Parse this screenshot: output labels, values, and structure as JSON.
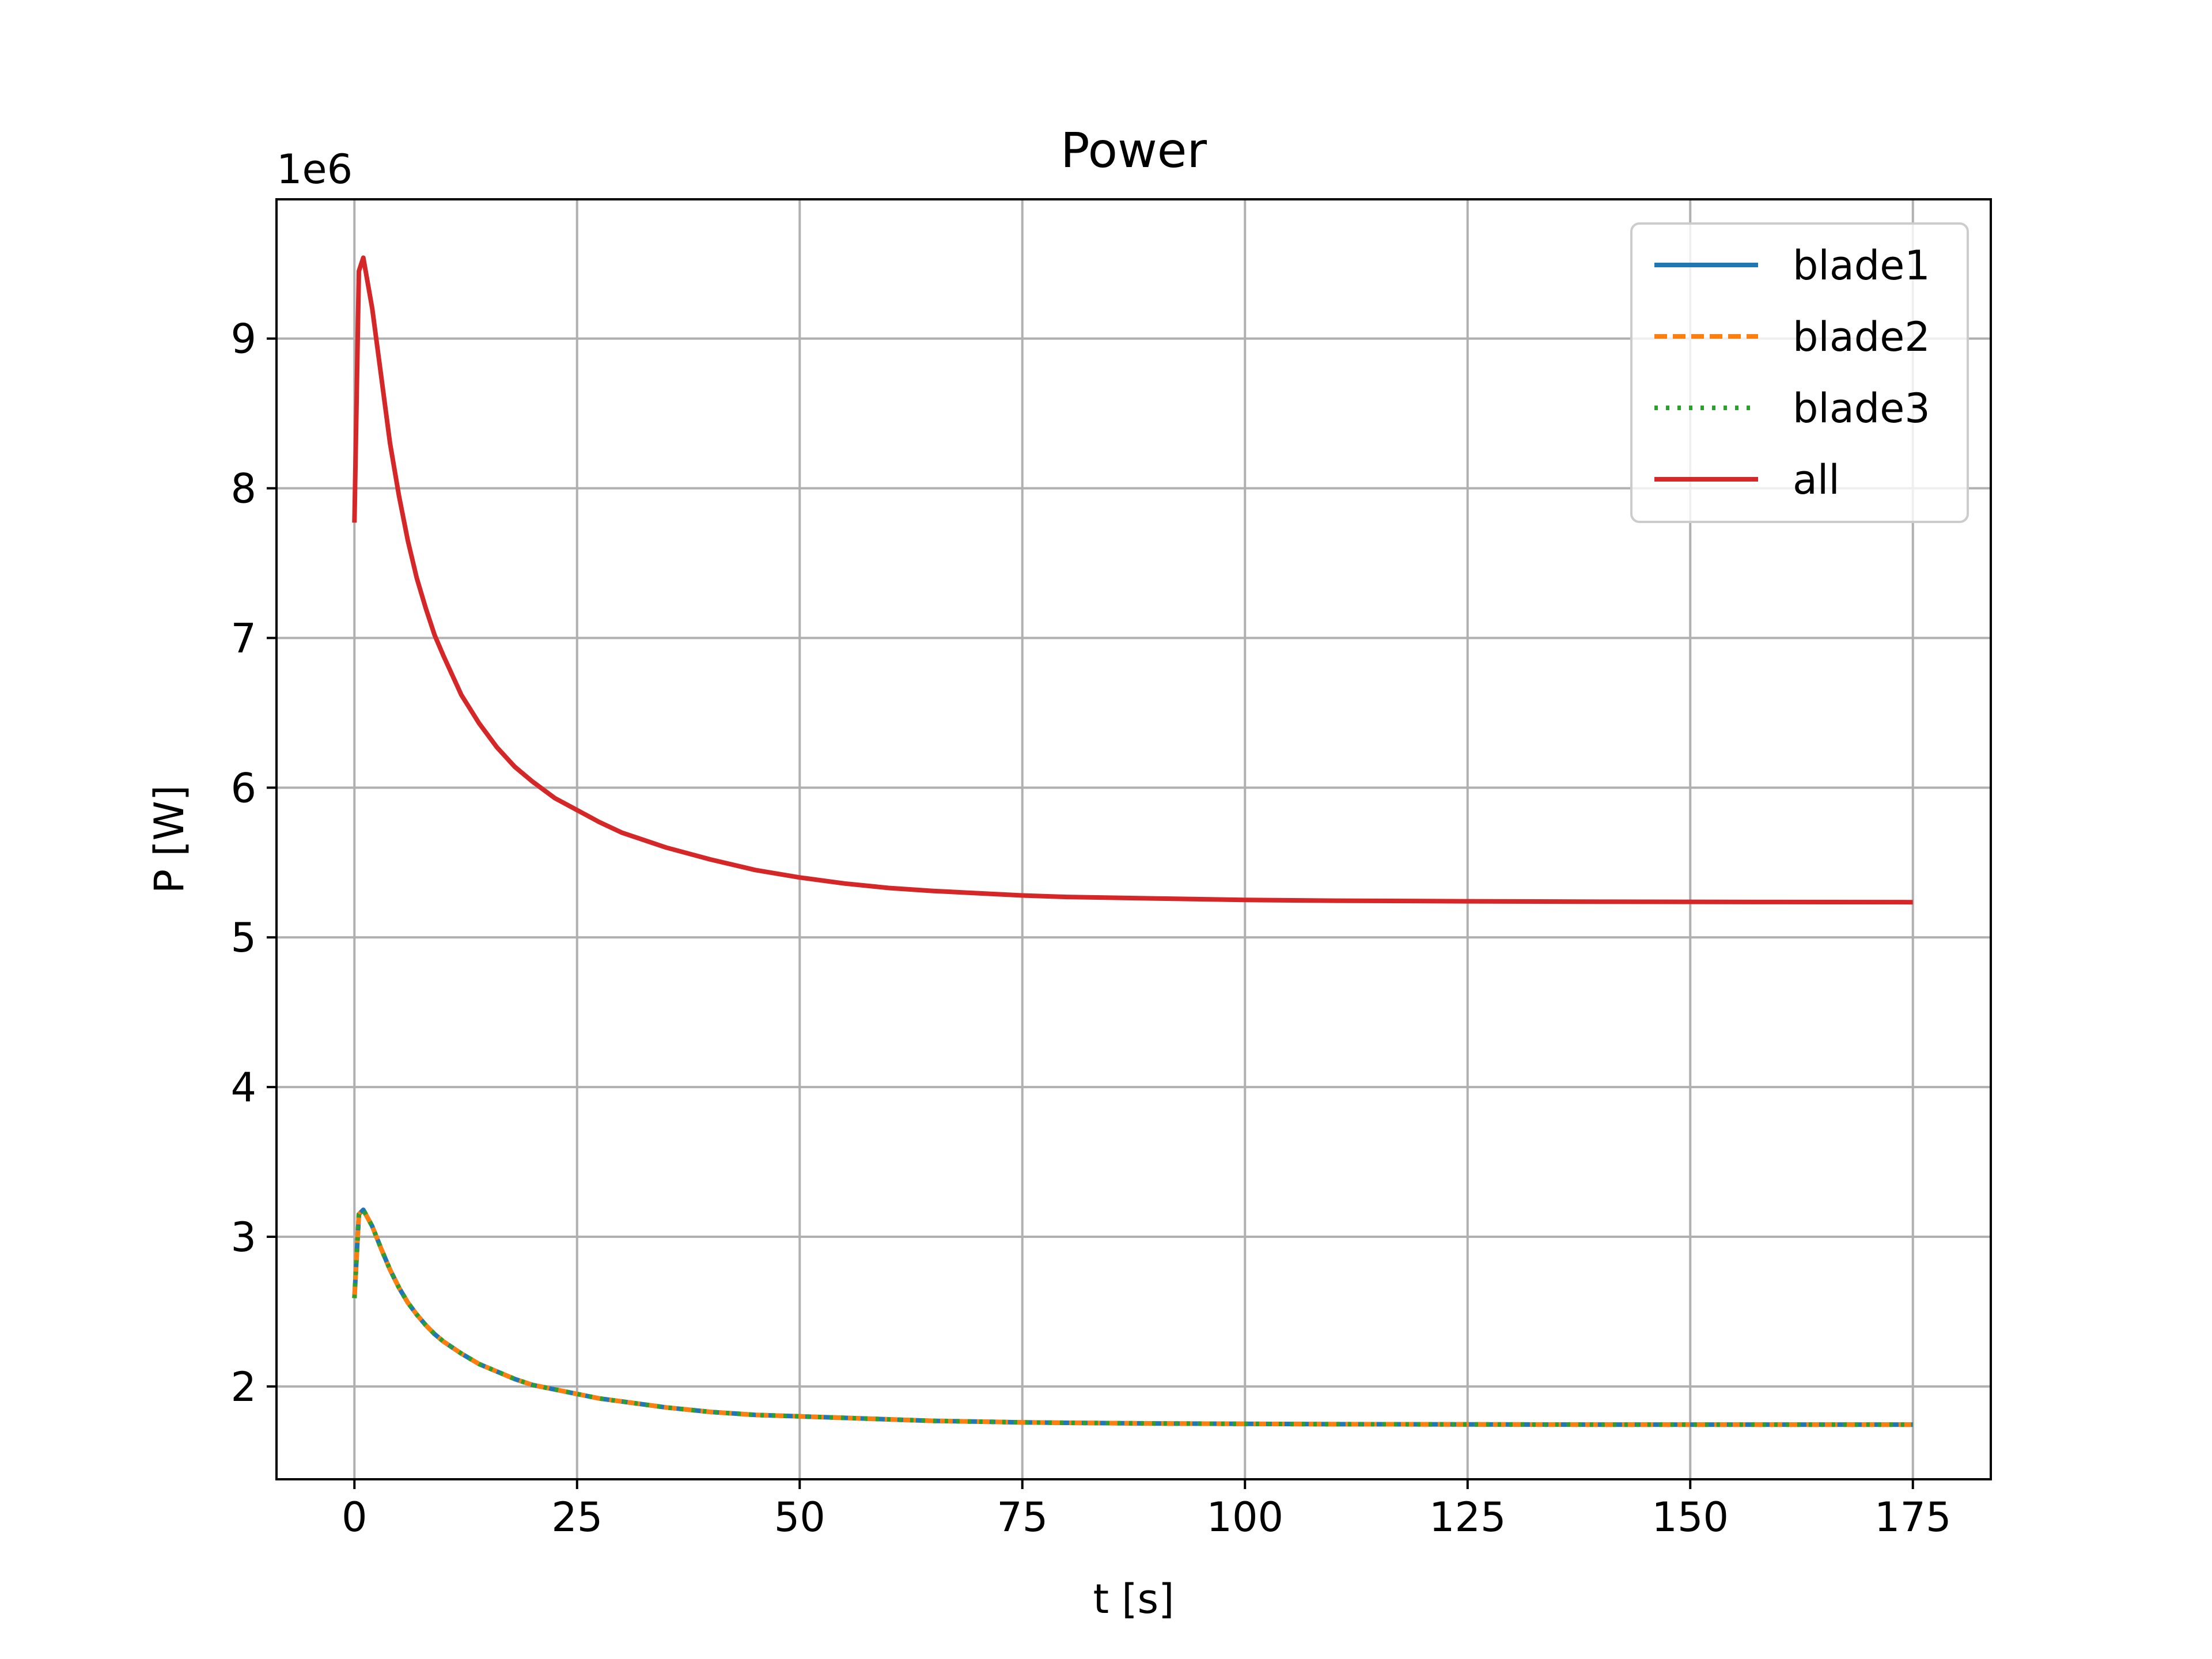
{
  "chart_data": {
    "type": "line",
    "title": "Power",
    "xlabel": "t [s]",
    "ylabel": "P [W]",
    "y_offset_label": "1e6",
    "xlim": [
      -8.75,
      183.75
    ],
    "ylim": [
      1.38,
      9.93
    ],
    "x_ticks": [
      0,
      25,
      50,
      75,
      100,
      125,
      150,
      175
    ],
    "x_tick_labels": [
      "0",
      "25",
      "50",
      "75",
      "100",
      "125",
      "150",
      "175"
    ],
    "y_ticks": [
      2,
      3,
      4,
      5,
      6,
      7,
      8,
      9
    ],
    "y_tick_labels": [
      "2",
      "3",
      "4",
      "5",
      "6",
      "7",
      "8",
      "9"
    ],
    "grid": true,
    "legend_position": "top-right",
    "x": [
      0,
      0.5,
      1,
      2,
      3,
      4,
      5,
      6,
      7,
      8,
      9,
      10,
      12,
      14,
      16,
      18,
      20,
      22.5,
      25,
      27.5,
      30,
      35,
      40,
      45,
      50,
      55,
      60,
      65,
      70,
      75,
      80,
      90,
      100,
      110,
      120,
      130,
      140,
      150,
      160,
      175
    ],
    "series": [
      {
        "name": "blade1",
        "color": "#1f77b4",
        "style": "solid",
        "values": [
          2.59,
          3.15,
          3.18,
          3.07,
          2.92,
          2.78,
          2.66,
          2.56,
          2.48,
          2.41,
          2.35,
          2.3,
          2.22,
          2.15,
          2.1,
          2.05,
          2.01,
          1.98,
          1.95,
          1.92,
          1.9,
          1.86,
          1.83,
          1.81,
          1.8,
          1.79,
          1.78,
          1.77,
          1.765,
          1.76,
          1.757,
          1.753,
          1.75,
          1.748,
          1.747,
          1.746,
          1.745,
          1.745,
          1.745,
          1.745
        ]
      },
      {
        "name": "blade2",
        "color": "#ff7f0e",
        "style": "dashed",
        "values": [
          2.59,
          3.15,
          3.18,
          3.07,
          2.92,
          2.78,
          2.66,
          2.56,
          2.48,
          2.41,
          2.35,
          2.3,
          2.22,
          2.15,
          2.1,
          2.05,
          2.01,
          1.98,
          1.95,
          1.92,
          1.9,
          1.86,
          1.83,
          1.81,
          1.8,
          1.79,
          1.78,
          1.77,
          1.765,
          1.76,
          1.757,
          1.753,
          1.75,
          1.748,
          1.747,
          1.746,
          1.745,
          1.745,
          1.745,
          1.745
        ]
      },
      {
        "name": "blade3",
        "color": "#2ca02c",
        "style": "dotted",
        "values": [
          2.59,
          3.15,
          3.18,
          3.07,
          2.92,
          2.78,
          2.66,
          2.56,
          2.48,
          2.41,
          2.35,
          2.3,
          2.22,
          2.15,
          2.1,
          2.05,
          2.01,
          1.98,
          1.95,
          1.92,
          1.9,
          1.86,
          1.83,
          1.81,
          1.8,
          1.79,
          1.78,
          1.77,
          1.765,
          1.76,
          1.757,
          1.753,
          1.75,
          1.748,
          1.747,
          1.746,
          1.745,
          1.745,
          1.745,
          1.745
        ]
      },
      {
        "name": "all",
        "color": "#d62728",
        "style": "solid",
        "values": [
          7.77,
          9.45,
          9.54,
          9.2,
          8.75,
          8.3,
          7.95,
          7.65,
          7.4,
          7.2,
          7.02,
          6.88,
          6.62,
          6.43,
          6.27,
          6.14,
          6.04,
          5.93,
          5.85,
          5.77,
          5.7,
          5.6,
          5.52,
          5.45,
          5.4,
          5.36,
          5.33,
          5.31,
          5.295,
          5.28,
          5.27,
          5.26,
          5.25,
          5.245,
          5.242,
          5.24,
          5.238,
          5.237,
          5.236,
          5.235
        ]
      }
    ]
  }
}
